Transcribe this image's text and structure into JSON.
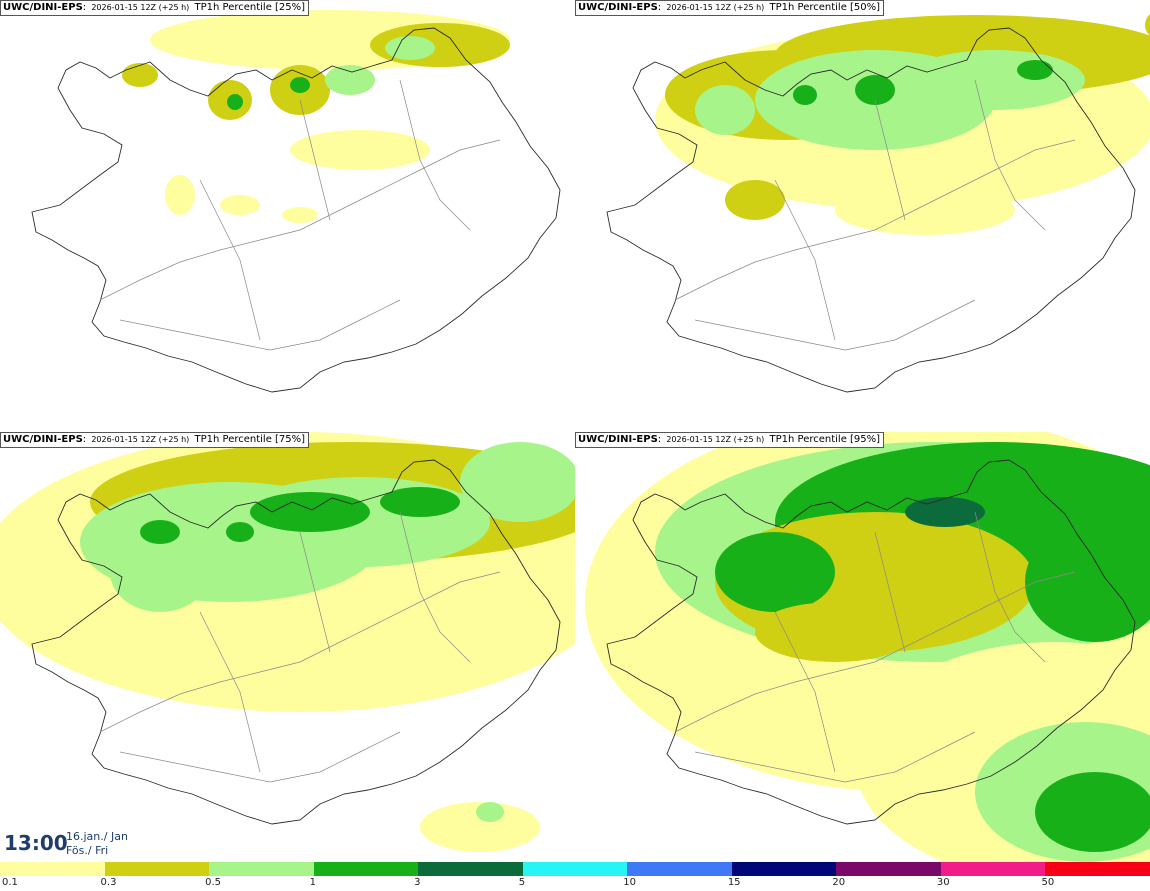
{
  "panels": [
    {
      "model": "UWC/DINI-EPS",
      "run": "2026-01-15 12Z (+25 h)",
      "product": "TP1h Percentile [25%]",
      "percentile": 25
    },
    {
      "model": "UWC/DINI-EPS",
      "run": "2026-01-15 12Z (+25 h)",
      "product": "TP1h Percentile [50%]",
      "percentile": 50
    },
    {
      "model": "UWC/DINI-EPS",
      "run": "2026-01-15 12Z (+25 h)",
      "product": "TP1h Percentile [75%]",
      "percentile": 75
    },
    {
      "model": "UWC/DINI-EPS",
      "run": "2026-01-15 12Z (+25 h)",
      "product": "TP1h Percentile [95%]",
      "percentile": 95
    }
  ],
  "valid_time": {
    "time": "13:00",
    "date": "16.jan./ Jan",
    "weekday": "Fös./ Fri"
  },
  "legend": {
    "labels": [
      "0.1",
      "0.3",
      "0.5",
      "1",
      "3",
      "5",
      "10",
      "15",
      "20",
      "30",
      "50"
    ],
    "colors": [
      "#fffe9e",
      "#cfcf14",
      "#a7f58a",
      "#17b018",
      "#0c6b3a",
      "#28f4f4",
      "#3f79f5",
      "#000878",
      "#7a0868",
      "#f21b8a",
      "#f60018"
    ]
  },
  "colors": {
    "land_outline": "#2b2b2b",
    "road": "#8a8a8a",
    "sea": "#ffffff",
    "title_text": "#1f3d6b"
  }
}
